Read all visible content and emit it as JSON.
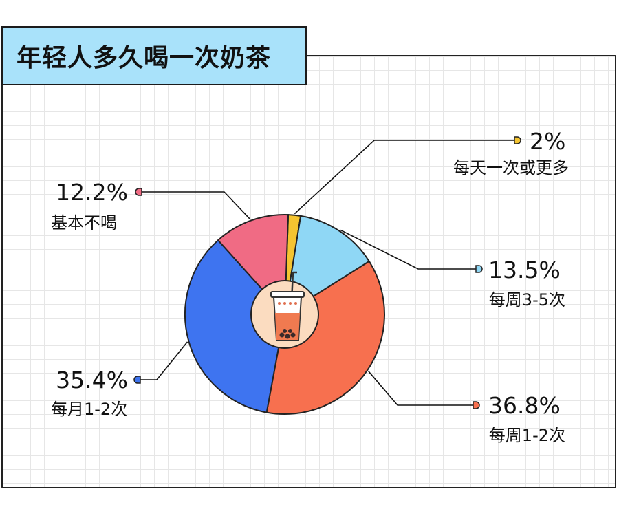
{
  "title": "年轻人多久喝一次奶茶",
  "chart_data": {
    "type": "pie",
    "title": "年轻人多久喝一次奶茶",
    "unit": "%",
    "slices": [
      {
        "label": "每天一次或更多",
        "value": 2,
        "value_label": "2%",
        "color": "#f4c430"
      },
      {
        "label": "每周3-5次",
        "value": 13.5,
        "value_label": "13.5%",
        "color": "#8fd7f5"
      },
      {
        "label": "每周1-2次",
        "value": 36.8,
        "value_label": "36.8%",
        "color": "#f7704f"
      },
      {
        "label": "每月1-2次",
        "value": 35.4,
        "value_label": "35.4%",
        "color": "#3e74f0"
      },
      {
        "label": "基本不喝",
        "value": 12.2,
        "value_label": "12.2%",
        "color": "#f06b84"
      }
    ],
    "center_icon": "milk-tea-cup-icon"
  }
}
